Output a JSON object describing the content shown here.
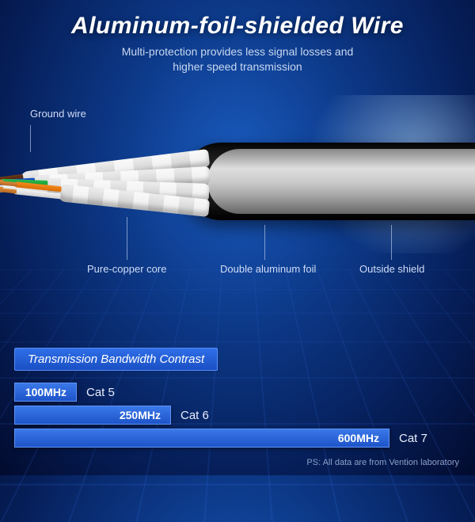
{
  "title": "Aluminum-foil-shielded Wire",
  "subtitle_line1": "Multi-protection provides less signal losses and",
  "subtitle_line2": "higher speed transmission",
  "callouts": {
    "ground_wire": "Ground wire",
    "pure_copper": "Pure-copper core",
    "double_foil": "Double aluminum foil",
    "outside_shield": "Outside shield"
  },
  "pairs": [
    {
      "color": "#6b3a1e",
      "stripe": "#ffffff"
    },
    {
      "color": "#1e4ec9",
      "stripe": "#ffffff"
    },
    {
      "color": "#2fb84d",
      "stripe": "#ffffff"
    },
    {
      "color": "#f58a1f",
      "stripe": "#ffffff"
    }
  ],
  "chart": {
    "title": "Transmission Bandwidth Contrast",
    "max": 600,
    "bar_gradient": [
      "#3a78e8",
      "#1e54c9"
    ],
    "bar_border": "#5e95f7",
    "rows": [
      {
        "value": 100,
        "value_label": "100MHz",
        "label": "Cat 5"
      },
      {
        "value": 250,
        "value_label": "250MHz",
        "label": "Cat 6"
      },
      {
        "value": 600,
        "value_label": "600MHz",
        "label": "Cat 7"
      }
    ]
  },
  "footnote": "PS:  All data are from Vention laboratory",
  "colors": {
    "background_center": "#1a5bbf",
    "background_edge": "#020b2e",
    "text_secondary": "#c8d8f0",
    "copper": "#c47629"
  }
}
